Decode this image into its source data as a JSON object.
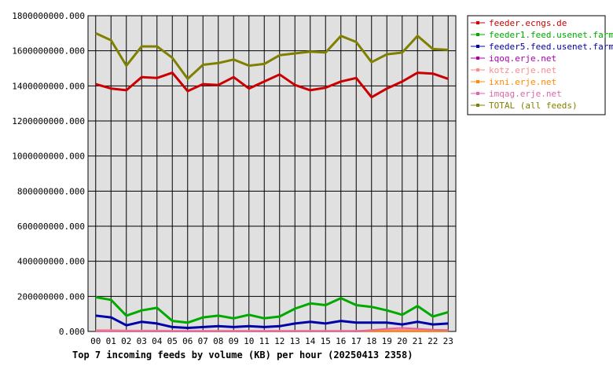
{
  "chart_data": {
    "type": "line",
    "title": "Top 7 incoming feeds by volume (KB) per hour (20250413 2358)",
    "xlabel": "",
    "ylabel": "",
    "ylim": [
      0,
      1800000000
    ],
    "yticks": [
      "0.000",
      "200000000.000",
      "400000000.000",
      "600000000.000",
      "800000000.000",
      "1000000000.000",
      "1200000000.000",
      "1400000000.000",
      "1600000000.000",
      "1800000000.000"
    ],
    "ytick_values": [
      0,
      200000000,
      400000000,
      600000000,
      800000000,
      1000000000,
      1200000000,
      1400000000,
      1600000000,
      1800000000
    ],
    "x": [
      "00",
      "01",
      "02",
      "03",
      "04",
      "05",
      "06",
      "07",
      "08",
      "09",
      "10",
      "11",
      "12",
      "13",
      "14",
      "15",
      "16",
      "17",
      "18",
      "19",
      "20",
      "21",
      "22",
      "23"
    ],
    "grid": true,
    "legend_position": "right",
    "series": [
      {
        "name": "feeder.ecngs.de",
        "color": "#cc0000",
        "values": [
          1410000000,
          1385000000,
          1375000000,
          1450000000,
          1445000000,
          1475000000,
          1370000000,
          1410000000,
          1405000000,
          1450000000,
          1385000000,
          1425000000,
          1465000000,
          1405000000,
          1375000000,
          1390000000,
          1425000000,
          1445000000,
          1335000000,
          1385000000,
          1425000000,
          1475000000,
          1470000000,
          1440000000
        ]
      },
      {
        "name": "feeder1.feed.usenet.farm",
        "color": "#00aa00",
        "values": [
          195000000,
          180000000,
          90000000,
          120000000,
          135000000,
          60000000,
          50000000,
          80000000,
          90000000,
          75000000,
          95000000,
          75000000,
          85000000,
          130000000,
          160000000,
          150000000,
          190000000,
          150000000,
          140000000,
          120000000,
          95000000,
          145000000,
          85000000,
          110000000
        ]
      },
      {
        "name": "feeder5.feed.usenet.farm",
        "color": "#0000aa",
        "values": [
          90000000,
          80000000,
          35000000,
          55000000,
          45000000,
          25000000,
          20000000,
          25000000,
          30000000,
          25000000,
          30000000,
          25000000,
          30000000,
          45000000,
          55000000,
          45000000,
          60000000,
          50000000,
          50000000,
          50000000,
          40000000,
          55000000,
          40000000,
          45000000
        ]
      },
      {
        "name": "iqoq.erje.net",
        "color": "#aa00aa",
        "values": [
          2000000,
          2000000,
          1000000,
          1000000,
          1000000,
          1000000,
          1000000,
          1000000,
          1000000,
          1000000,
          1000000,
          1000000,
          1000000,
          1000000,
          1000000,
          1000000,
          1000000,
          1000000,
          1000000,
          1000000,
          1000000,
          1000000,
          1000000,
          1000000
        ]
      },
      {
        "name": "kotz.erje.net",
        "color": "#ff8888",
        "values": [
          8000000,
          8000000,
          6000000,
          5000000,
          5000000,
          4000000,
          4000000,
          4000000,
          4000000,
          4000000,
          4000000,
          4000000,
          4000000,
          4000000,
          4000000,
          4000000,
          4000000,
          4000000,
          5000000,
          8000000,
          10000000,
          8000000,
          8000000,
          6000000
        ]
      },
      {
        "name": "ixni.erje.net",
        "color": "#ff8800",
        "values": [
          2000000,
          2000000,
          1000000,
          1000000,
          1000000,
          1000000,
          1000000,
          1000000,
          1000000,
          1000000,
          1000000,
          1000000,
          1000000,
          1000000,
          1000000,
          1000000,
          1000000,
          1000000,
          1000000,
          1000000,
          1000000,
          1000000,
          1000000,
          1000000
        ]
      },
      {
        "name": "imqag.erje.net",
        "color": "#dd66aa",
        "values": [
          1000000,
          1000000,
          1000000,
          1000000,
          1000000,
          1000000,
          1000000,
          1000000,
          1000000,
          1000000,
          1000000,
          1000000,
          1000000,
          1000000,
          1000000,
          1000000,
          1000000,
          1000000,
          8000000,
          15000000,
          20000000,
          15000000,
          10000000,
          8000000
        ]
      },
      {
        "name": "TOTAL (all feeds)",
        "color": "#808000",
        "values": [
          1700000000,
          1660000000,
          1515000000,
          1625000000,
          1625000000,
          1560000000,
          1440000000,
          1520000000,
          1530000000,
          1550000000,
          1515000000,
          1525000000,
          1575000000,
          1585000000,
          1595000000,
          1590000000,
          1685000000,
          1650000000,
          1535000000,
          1580000000,
          1590000000,
          1685000000,
          1610000000,
          1605000000
        ]
      }
    ]
  }
}
